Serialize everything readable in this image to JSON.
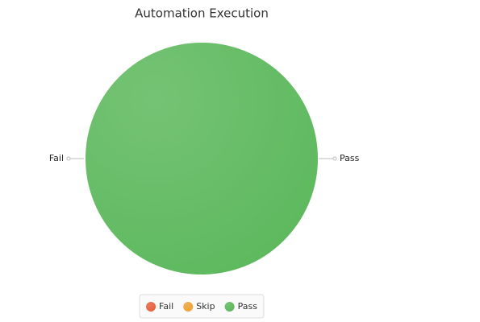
{
  "chart_data": {
    "type": "pie",
    "title": "Automation Execution",
    "categories": [
      "Fail",
      "Skip",
      "Pass"
    ],
    "values": [
      0,
      0,
      100
    ],
    "colors": [
      "#e8603c",
      "#eea236",
      "#5cb85c"
    ],
    "legend": "bottom"
  }
}
